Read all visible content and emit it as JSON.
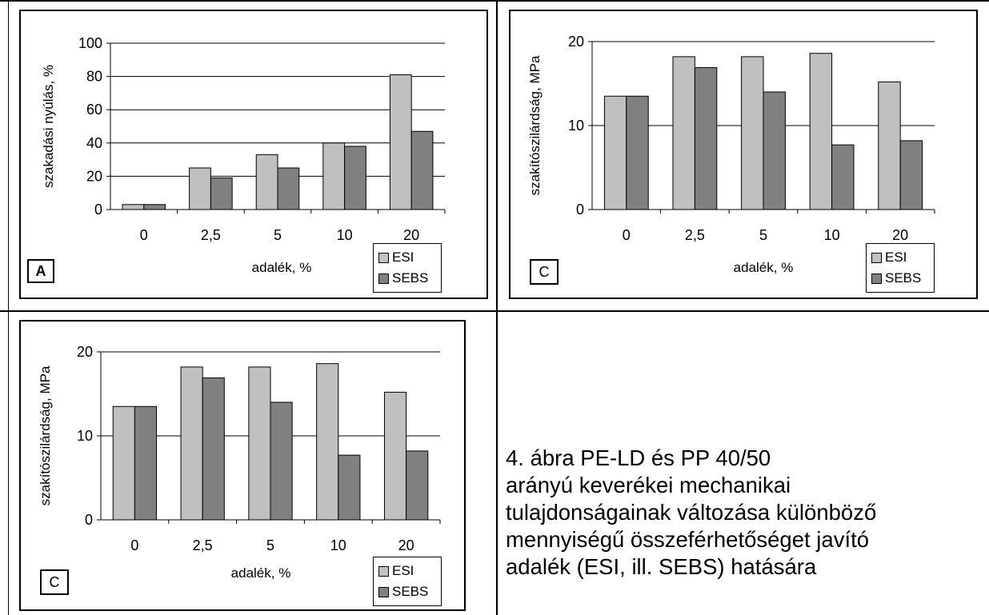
{
  "figure": {
    "caption_lines": [
      "4. ábra PE-LD és PP 40/50",
      "arányú keverékei mechanikai",
      "tulajdonságainak változása különböző",
      "mennyiségű összeférhetőséget javító",
      "adalék (ESI, ill. SEBS) hatására"
    ]
  },
  "colors": {
    "esi": "#c0c0c0",
    "sebs": "#808080",
    "grid": "#000000"
  },
  "panels": [
    {
      "letter": "A",
      "legend": [
        "ESI",
        "SEBS"
      ]
    },
    {
      "letter": "C",
      "legend": [
        "ESI",
        "SEBS"
      ]
    },
    {
      "letter": "C",
      "legend": [
        "ESI",
        "SEBS"
      ]
    }
  ],
  "chart_data": [
    {
      "type": "bar",
      "categories": [
        "0",
        "2,5",
        "5",
        "10",
        "20"
      ],
      "series": [
        {
          "name": "ESI",
          "values": [
            3,
            25,
            33,
            40,
            81
          ]
        },
        {
          "name": "SEBS",
          "values": [
            3,
            19,
            25,
            38,
            47
          ]
        }
      ],
      "xlabel": "adalék, %",
      "ylabel": "szakadási nyúlás, %",
      "ylim": [
        0,
        100
      ],
      "yticks": [
        "0",
        "20",
        "40",
        "60",
        "80",
        "100"
      ],
      "grid": true,
      "legend": "bottom-right"
    },
    {
      "type": "bar",
      "categories": [
        "0",
        "2,5",
        "5",
        "10",
        "20"
      ],
      "series": [
        {
          "name": "ESI",
          "values": [
            13.5,
            18.2,
            18.2,
            18.6,
            15.2
          ]
        },
        {
          "name": "SEBS",
          "values": [
            13.5,
            16.9,
            14,
            7.7,
            8.2
          ]
        }
      ],
      "xlabel": "adalék, %",
      "ylabel": "szakítószilárdság, MPa",
      "ylim": [
        0,
        20
      ],
      "yticks": [
        "0",
        "10",
        "20"
      ],
      "grid": true,
      "legend": "bottom-right"
    },
    {
      "type": "bar",
      "categories": [
        "0",
        "2,5",
        "5",
        "10",
        "20"
      ],
      "series": [
        {
          "name": "ESI",
          "values": [
            13.5,
            18.2,
            18.2,
            18.6,
            15.2
          ]
        },
        {
          "name": "SEBS",
          "values": [
            13.5,
            16.9,
            14,
            7.7,
            8.2
          ]
        }
      ],
      "xlabel": "adalék, %",
      "ylabel": "szakítószilárdság, MPa",
      "ylim": [
        0,
        20
      ],
      "yticks": [
        "0",
        "10",
        "20"
      ],
      "grid": true,
      "legend": "bottom-right"
    }
  ]
}
